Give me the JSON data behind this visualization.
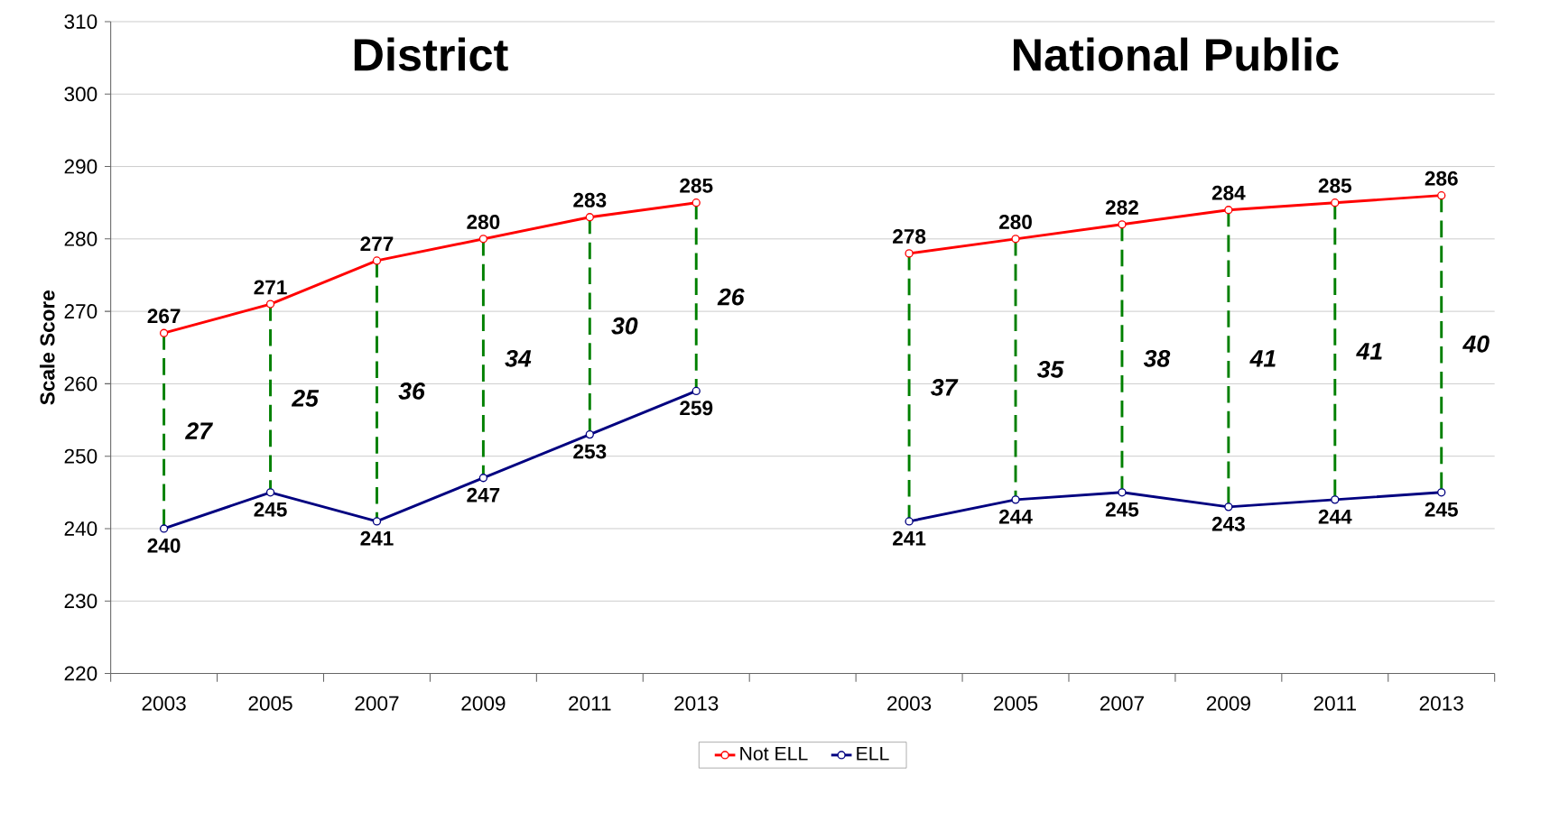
{
  "chart_data": {
    "type": "line",
    "categories": [
      "2003",
      "2005",
      "2007",
      "2009",
      "2011",
      "2013",
      null,
      "2003",
      "2005",
      "2007",
      "2009",
      "2011",
      "2013"
    ],
    "series": [
      {
        "name": "Not ELL",
        "color": "#ff0000",
        "values": [
          267,
          271,
          277,
          280,
          283,
          285,
          null,
          278,
          280,
          282,
          284,
          285,
          286
        ]
      },
      {
        "name": "ELL",
        "color": "#000080",
        "values": [
          240,
          245,
          241,
          247,
          253,
          259,
          null,
          241,
          244,
          245,
          243,
          244,
          245
        ]
      }
    ],
    "ylabel": "Scale Score",
    "ylim": [
      220,
      310
    ],
    "yticks": [
      220,
      230,
      240,
      250,
      260,
      270,
      280,
      290,
      300,
      310
    ],
    "grid": "y",
    "legend": "bottom",
    "marker": "circle",
    "line_style": "solid",
    "data_labels": true,
    "annotations": [
      "District",
      "National Public",
      "27",
      "25",
      "36",
      "34",
      "30",
      "26",
      "37",
      "35",
      "38",
      "41",
      "41",
      "40"
    ]
  }
}
